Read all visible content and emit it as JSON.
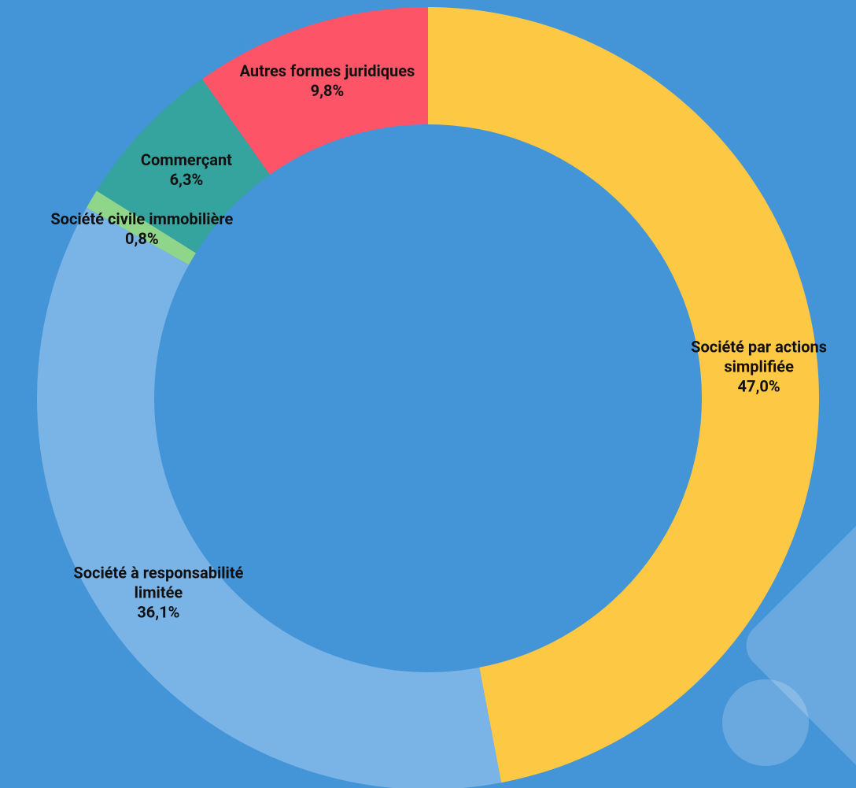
{
  "chart_data": {
    "type": "donut",
    "categories": [
      "Société par actions simplifiée",
      "Société à responsabilité limitée",
      "Société civile immobilière",
      "Commerçant",
      "Autres formes juridiques"
    ],
    "values": [
      47.0,
      36.1,
      0.8,
      6.3,
      9.8
    ],
    "value_labels": [
      "47,0%",
      "36,1%",
      "0,8%",
      "6,3%",
      "9,8%"
    ],
    "colors": [
      "#fdc844",
      "#7ab3e6",
      "#8fd58a",
      "#35a39e",
      "#fe5468"
    ]
  }
}
